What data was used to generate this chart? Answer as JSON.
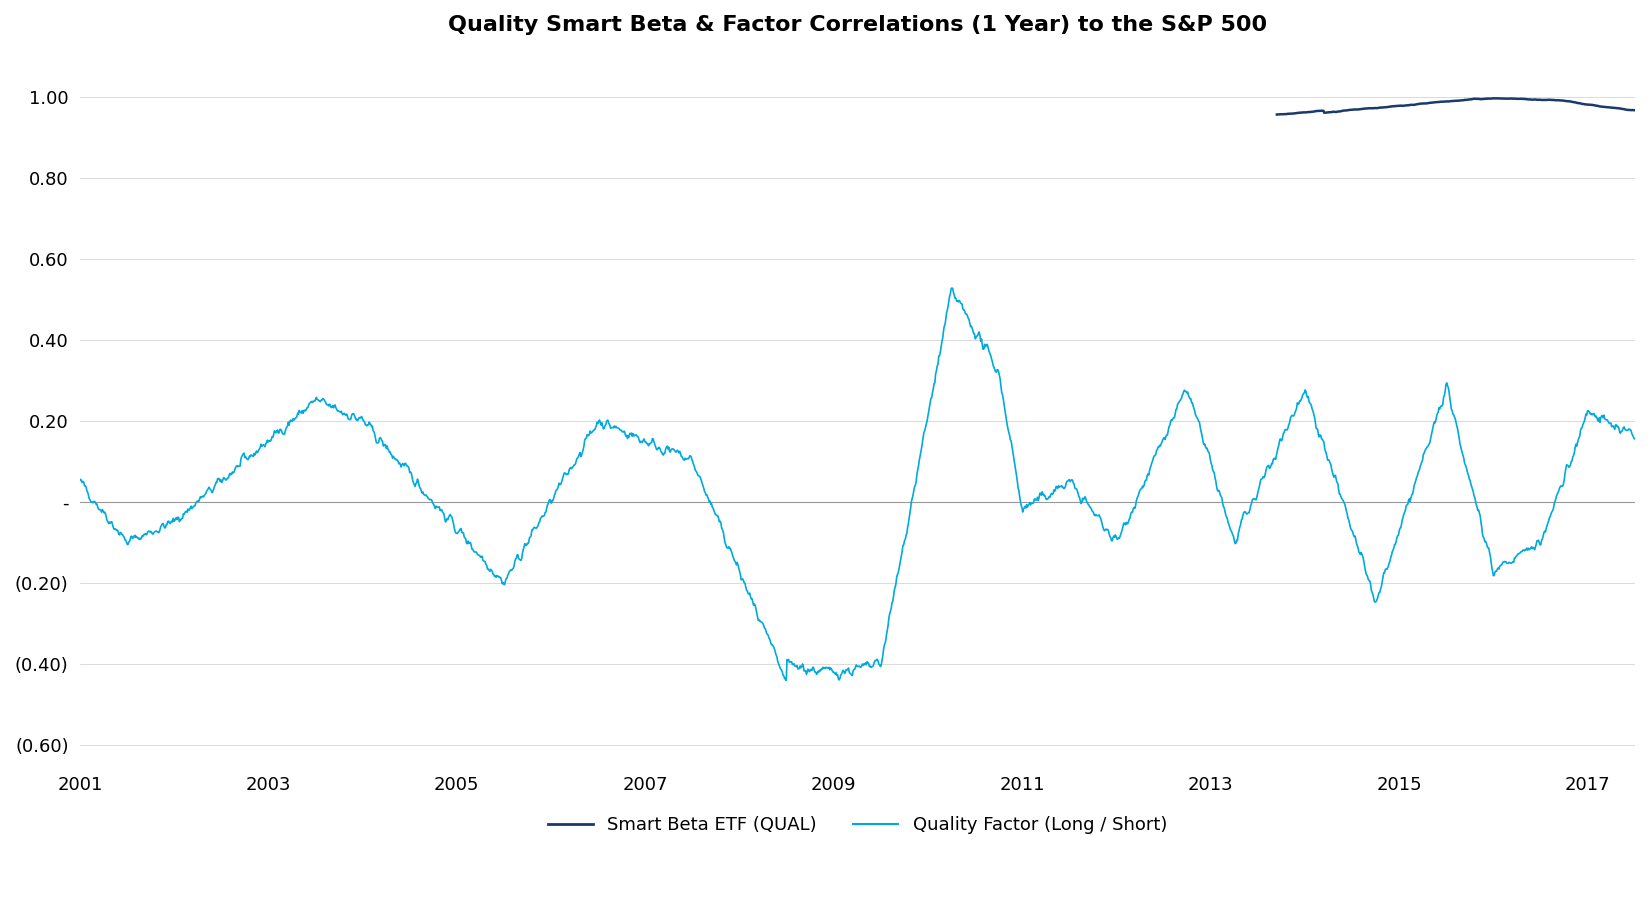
{
  "title": "Quality Smart Beta & Factor Correlations (1 Year) to the S&P 500",
  "title_fontsize": 16,
  "title_fontweight": "bold",
  "xlim": [
    2001,
    2017.5
  ],
  "ylim": [
    -0.65,
    1.1
  ],
  "yticks": [
    -0.6,
    -0.4,
    -0.2,
    0.0,
    0.2,
    0.4,
    0.6,
    0.8,
    1.0
  ],
  "ytick_labels": [
    "(0.60)",
    "(0.40)",
    "(0.20)",
    "-",
    "0.20",
    "0.40",
    "0.60",
    "0.80",
    "1.00"
  ],
  "xticks": [
    2001,
    2003,
    2005,
    2007,
    2009,
    2011,
    2013,
    2015,
    2017
  ],
  "qual_color": "#1a3a6b",
  "factor_color": "#00aadd",
  "legend_labels": [
    "Smart Beta ETF (QUAL)",
    "Quality Factor (Long / Short)"
  ],
  "background_color": "#ffffff",
  "grid_color": "#cccccc",
  "zero_line_color": "#999999"
}
